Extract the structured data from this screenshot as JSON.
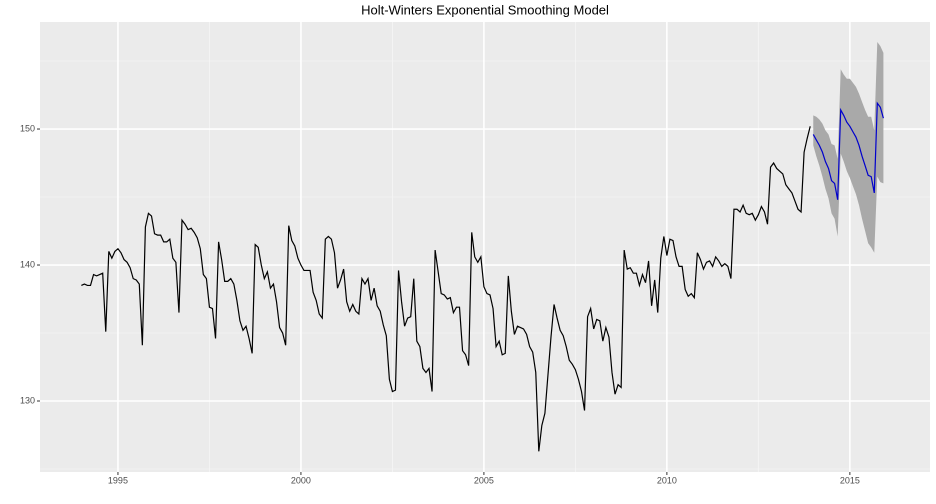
{
  "chart_data": {
    "type": "line",
    "title": "Holt-Winters Exponential Smoothing Model",
    "xlim": [
      1992.87,
      2017.19
    ],
    "xticks": [
      1995,
      2000,
      2005,
      2010,
      2015
    ],
    "ylim": [
      124.78,
      157.87
    ],
    "yticks": [
      130,
      140,
      150
    ],
    "grid": true,
    "series": [
      {
        "color": "#000000",
        "x": [
          1994,
          1994.083,
          1994.167,
          1994.25,
          1994.333,
          1994.417,
          1994.5,
          1994.583,
          1994.667,
          1994.75,
          1994.833,
          1994.917,
          1995,
          1995.083,
          1995.167,
          1995.25,
          1995.333,
          1995.417,
          1995.5,
          1995.583,
          1995.667,
          1995.75,
          1995.833,
          1995.917,
          1996,
          1996.083,
          1996.167,
          1996.25,
          1996.333,
          1996.417,
          1996.5,
          1996.583,
          1996.667,
          1996.75,
          1996.833,
          1996.917,
          1997,
          1997.083,
          1997.167,
          1997.25,
          1997.333,
          1997.417,
          1997.5,
          1997.583,
          1997.667,
          1997.75,
          1997.833,
          1997.917,
          1998,
          1998.083,
          1998.167,
          1998.25,
          1998.333,
          1998.417,
          1998.5,
          1998.583,
          1998.667,
          1998.75,
          1998.833,
          1998.917,
          1999,
          1999.083,
          1999.167,
          1999.25,
          1999.333,
          1999.417,
          1999.5,
          1999.583,
          1999.667,
          1999.75,
          1999.833,
          1999.917,
          2000,
          2000.083,
          2000.167,
          2000.25,
          2000.333,
          2000.417,
          2000.5,
          2000.583,
          2000.667,
          2000.75,
          2000.833,
          2000.917,
          2001,
          2001.083,
          2001.167,
          2001.25,
          2001.333,
          2001.417,
          2001.5,
          2001.583,
          2001.667,
          2001.75,
          2001.833,
          2001.917,
          2002,
          2002.083,
          2002.167,
          2002.25,
          2002.333,
          2002.417,
          2002.5,
          2002.583,
          2002.667,
          2002.75,
          2002.833,
          2002.917,
          2003,
          2003.083,
          2003.167,
          2003.25,
          2003.333,
          2003.417,
          2003.5,
          2003.583,
          2003.667,
          2003.75,
          2003.833,
          2003.917,
          2004,
          2004.083,
          2004.167,
          2004.25,
          2004.333,
          2004.417,
          2004.5,
          2004.583,
          2004.667,
          2004.75,
          2004.833,
          2004.917,
          2005,
          2005.083,
          2005.167,
          2005.25,
          2005.333,
          2005.417,
          2005.5,
          2005.583,
          2005.667,
          2005.75,
          2005.833,
          2005.917,
          2006,
          2006.083,
          2006.167,
          2006.25,
          2006.333,
          2006.417,
          2006.5,
          2006.583,
          2006.667,
          2006.75,
          2006.833,
          2006.917,
          2007,
          2007.083,
          2007.167,
          2007.25,
          2007.333,
          2007.417,
          2007.5,
          2007.583,
          2007.667,
          2007.75,
          2007.833,
          2007.917,
          2008,
          2008.083,
          2008.167,
          2008.25,
          2008.333,
          2008.417,
          2008.5,
          2008.583,
          2008.667,
          2008.75,
          2008.833,
          2008.917,
          2009,
          2009.083,
          2009.167,
          2009.25,
          2009.333,
          2009.417,
          2009.5,
          2009.583,
          2009.667,
          2009.75,
          2009.833,
          2009.917,
          2010,
          2010.083,
          2010.167,
          2010.25,
          2010.333,
          2010.417,
          2010.5,
          2010.583,
          2010.667,
          2010.75,
          2010.833,
          2010.917,
          2011,
          2011.083,
          2011.167,
          2011.25,
          2011.333,
          2011.417,
          2011.5,
          2011.583,
          2011.667,
          2011.75,
          2011.833,
          2011.917,
          2012,
          2012.083,
          2012.167,
          2012.25,
          2012.333,
          2012.417,
          2012.5,
          2012.583,
          2012.667,
          2012.75,
          2012.833,
          2012.917,
          2013,
          2013.083,
          2013.167,
          2013.25,
          2013.333,
          2013.417,
          2013.5,
          2013.583,
          2013.667,
          2013.75,
          2013.833,
          2013.917
        ],
        "values": [
          138.5,
          138.6,
          138.5,
          138.5,
          139.3,
          139.2,
          139.3,
          139.4,
          135.1,
          141.0,
          140.5,
          141.0,
          141.2,
          140.9,
          140.4,
          140.2,
          139.8,
          139.0,
          138.9,
          138.6,
          134.1,
          142.8,
          143.8,
          143.6,
          142.3,
          142.2,
          142.2,
          141.7,
          141.7,
          141.9,
          140.5,
          140.2,
          136.5,
          143.3,
          143.0,
          142.6,
          142.7,
          142.4,
          142.0,
          141.2,
          139.3,
          139.0,
          136.9,
          136.8,
          134.6,
          141.7,
          140.4,
          138.8,
          138.8,
          139.0,
          138.6,
          137.4,
          135.9,
          135.2,
          135.5,
          134.6,
          133.5,
          141.5,
          141.3,
          140.0,
          139.0,
          139.5,
          138.3,
          138.6,
          137.3,
          135.4,
          135.0,
          134.1,
          142.9,
          141.8,
          141.4,
          140.5,
          140.0,
          139.6,
          139.6,
          139.6,
          138.0,
          137.4,
          136.4,
          136.1,
          141.9,
          142.1,
          141.9,
          140.9,
          138.3,
          138.9,
          139.7,
          137.3,
          136.6,
          137.1,
          136.6,
          136.4,
          139.0,
          138.6,
          139.0,
          137.4,
          138.3,
          137.0,
          136.6,
          135.6,
          134.8,
          131.6,
          130.7,
          130.8,
          139.6,
          137.3,
          135.5,
          136.1,
          136.2,
          139.0,
          134.4,
          134.0,
          132.4,
          132.1,
          132.4,
          130.7,
          141.1,
          139.5,
          137.9,
          137.8,
          137.5,
          137.6,
          136.5,
          136.9,
          136.9,
          133.7,
          133.4,
          132.6,
          142.4,
          140.6,
          140.2,
          140.6,
          138.4,
          137.9,
          137.8,
          136.8,
          134.0,
          134.4,
          133.4,
          133.5,
          139.2,
          136.6,
          134.9,
          135.5,
          135.4,
          135.3,
          134.9,
          134.0,
          133.6,
          132.1,
          126.3,
          128.2,
          129.1,
          131.9,
          134.7,
          137.1,
          136.1,
          135.2,
          134.8,
          134.0,
          133.0,
          132.7,
          132.3,
          131.6,
          130.7,
          129.3,
          136.2,
          136.8,
          135.3,
          136.0,
          135.9,
          134.4,
          135.4,
          134.7,
          132.1,
          130.5,
          131.2,
          131.0,
          141.1,
          139.7,
          139.8,
          139.4,
          139.4,
          138.5,
          139.3,
          138.7,
          140.3,
          137.0,
          138.9,
          136.5,
          140.5,
          142.1,
          140.7,
          141.9,
          141.8,
          140.6,
          139.9,
          139.9,
          138.2,
          137.7,
          137.9,
          137.6,
          140.9,
          140.4,
          139.7,
          140.2,
          140.3,
          139.9,
          140.6,
          140.3,
          139.9,
          140.1,
          139.9,
          139.0,
          144.1,
          144.1,
          143.9,
          144.4,
          143.8,
          143.7,
          143.8,
          143.3,
          143.7,
          144.3,
          143.9,
          143.0,
          147.2,
          147.5,
          147.1,
          146.9,
          146.7,
          145.9,
          145.6,
          145.3,
          144.7,
          144.1,
          143.9,
          148.3,
          149.3,
          150.2
        ]
      },
      {
        "color": "#0000cc",
        "band_color": "#a9a9a9",
        "x": [
          2014,
          2014.083,
          2014.167,
          2014.25,
          2014.333,
          2014.417,
          2014.5,
          2014.583,
          2014.667,
          2014.75,
          2014.833,
          2014.917,
          2015,
          2015.083,
          2015.167,
          2015.25,
          2015.333,
          2015.417,
          2015.5,
          2015.583,
          2015.667,
          2015.75,
          2015.833,
          2015.917
        ],
        "values": [
          149.6,
          149.2,
          148.8,
          148.3,
          147.6,
          147.1,
          146.2,
          146.0,
          144.8,
          151.4,
          151.0,
          150.5,
          150.2,
          149.8,
          149.4,
          148.8,
          148.0,
          147.3,
          146.6,
          146.5,
          145.3,
          151.9,
          151.6,
          150.8
        ],
        "lower": [
          148.8,
          148.0,
          147.3,
          146.5,
          145.6,
          144.9,
          143.8,
          143.4,
          142.1,
          148.2,
          147.6,
          146.9,
          146.4,
          145.8,
          145.2,
          144.4,
          143.4,
          142.5,
          141.6,
          141.3,
          140.9,
          146.5,
          146.1,
          146.0
        ],
        "upper": [
          151.0,
          150.9,
          150.7,
          150.4,
          149.9,
          149.6,
          148.9,
          148.8,
          147.8,
          154.4,
          154.0,
          153.7,
          153.7,
          153.4,
          153.1,
          152.6,
          152.0,
          151.4,
          150.9,
          150.9,
          149.9,
          156.4,
          156.1,
          155.6
        ]
      }
    ]
  }
}
